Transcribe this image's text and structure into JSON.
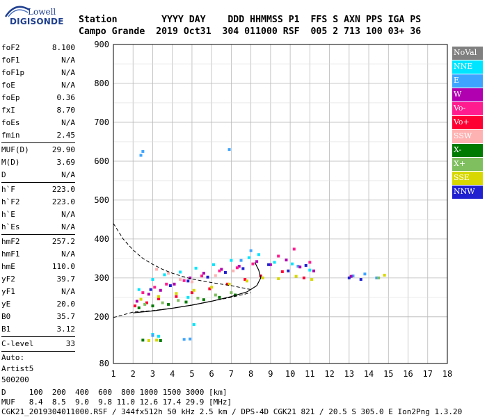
{
  "logo": {
    "top": "Lowell",
    "bottom": "DIGISONDE"
  },
  "header": {
    "line1": "Station        YYYY DAY    DDD HHMMSS P1  FFS S AXN PPS IGA PS",
    "line2": "Campo Grande  2019 Oct31  304 011000 RSF  005 2 713 100 03+ 36"
  },
  "params": [
    {
      "k": "foF2",
      "v": "8.100"
    },
    {
      "k": "foF1",
      "v": "N/A"
    },
    {
      "k": "foF1p",
      "v": "N/A"
    },
    {
      "k": "foE",
      "v": "N/A"
    },
    {
      "k": "foEp",
      "v": "0.36"
    },
    {
      "k": "fxI",
      "v": "8.70"
    },
    {
      "k": "foEs",
      "v": "N/A"
    },
    {
      "k": "fmin",
      "v": "2.45"
    },
    {
      "k": "MUF(D)",
      "v": "29.90"
    },
    {
      "k": "M(D)",
      "v": "3.69"
    },
    {
      "k": "D",
      "v": "N/A"
    },
    {
      "k": "h`F",
      "v": "223.0"
    },
    {
      "k": "h`F2",
      "v": "223.0"
    },
    {
      "k": "h`E",
      "v": "N/A"
    },
    {
      "k": "h`Es",
      "v": "N/A"
    },
    {
      "k": "hmF2",
      "v": "257.2"
    },
    {
      "k": "hmF1",
      "v": "N/A"
    },
    {
      "k": "hmE",
      "v": "110.0"
    },
    {
      "k": "yF2",
      "v": "39.7"
    },
    {
      "k": "yF1",
      "v": "N/A"
    },
    {
      "k": "yE",
      "v": "20.0"
    },
    {
      "k": "B0",
      "v": "35.7"
    },
    {
      "k": "B1",
      "v": "3.12"
    },
    {
      "k": "C-level",
      "v": "33"
    }
  ],
  "auto": {
    "line1": "Auto:",
    "line2": "Artist5",
    "line3": "500200"
  },
  "legend": [
    {
      "label": "NoVal",
      "color": "#808080"
    },
    {
      "label": "NNE",
      "color": "#00e5ff"
    },
    {
      "label": "E",
      "color": "#3da5ff"
    },
    {
      "label": "W",
      "color": "#b000b0"
    },
    {
      "label": "Vo-",
      "color": "#ff1c8e"
    },
    {
      "label": "Vo+",
      "color": "#ff0033"
    },
    {
      "label": "SSW",
      "color": "#ffb2b2"
    },
    {
      "label": "X-",
      "color": "#007a00"
    },
    {
      "label": "X+",
      "color": "#7fbf5f"
    },
    {
      "label": "SSE",
      "color": "#d8d800"
    },
    {
      "label": "NNW",
      "color": "#2020d0"
    }
  ],
  "footer": {
    "line1": "D     100  200  400  600  800 1000 1500 3000 [km]",
    "line2": "MUF   8.4  8.5  9.0  9.8 11.0 12.6 17.4 29.9 [MHz]",
    "line3": "CGK21_2019304011000.RSF / 344fx512h 50 kHz 2.5 km / DPS-4D CGK21 821 / 20.5 S 305.0 E Ion2Png 1.3.20"
  },
  "chart_data": {
    "type": "scatter",
    "xlim": [
      1,
      18
    ],
    "ylim": [
      80,
      900
    ],
    "xticks": [
      1,
      2,
      3,
      4,
      5,
      6,
      7,
      8,
      9,
      10,
      11,
      12,
      13,
      14,
      15,
      16,
      17,
      18
    ],
    "yticks": [
      80,
      200,
      300,
      400,
      500,
      600,
      700,
      800,
      900
    ],
    "grid": true,
    "legend_placement": "right",
    "series": [
      {
        "name": "NNE",
        "color": "#00e5ff",
        "points": [
          [
            3.0,
            296
          ],
          [
            3.6,
            308
          ],
          [
            4.4,
            315
          ],
          [
            5.2,
            325
          ],
          [
            6.1,
            334
          ],
          [
            7.0,
            345
          ],
          [
            7.9,
            352
          ],
          [
            8.4,
            360
          ],
          [
            9.2,
            340
          ],
          [
            10.1,
            336
          ],
          [
            11.0,
            320
          ],
          [
            2.3,
            270
          ],
          [
            4.8,
            250
          ],
          [
            5.1,
            180
          ],
          [
            3.3,
            150
          ],
          [
            3.0,
            155
          ]
        ]
      },
      {
        "name": "E",
        "color": "#3da5ff",
        "points": [
          [
            2.4,
            615
          ],
          [
            2.5,
            625
          ],
          [
            6.9,
            630
          ],
          [
            4.6,
            142
          ],
          [
            4.9,
            143
          ],
          [
            3.0,
            152
          ],
          [
            13.2,
            305
          ],
          [
            13.8,
            310
          ],
          [
            14.4,
            300
          ],
          [
            7.5,
            345
          ],
          [
            8.0,
            370
          ],
          [
            10.4,
            330
          ]
        ]
      },
      {
        "name": "W",
        "color": "#b000b0",
        "points": [
          [
            2.2,
            240
          ],
          [
            2.8,
            258
          ],
          [
            3.4,
            268
          ],
          [
            4.1,
            284
          ],
          [
            4.9,
            300
          ],
          [
            5.6,
            312
          ],
          [
            6.5,
            322
          ],
          [
            7.4,
            330
          ],
          [
            8.3,
            342
          ],
          [
            9.0,
            334
          ],
          [
            9.8,
            346
          ],
          [
            10.5,
            328
          ],
          [
            11.2,
            318
          ],
          [
            13.1,
            304
          ]
        ]
      },
      {
        "name": "Vo-",
        "color": "#ff1c8e",
        "points": [
          [
            2.5,
            262
          ],
          [
            3.1,
            276
          ],
          [
            3.7,
            284
          ],
          [
            4.6,
            293
          ],
          [
            5.5,
            305
          ],
          [
            6.4,
            318
          ],
          [
            7.3,
            326
          ],
          [
            8.1,
            336
          ],
          [
            9.4,
            356
          ],
          [
            10.2,
            374
          ],
          [
            11.0,
            340
          ]
        ]
      },
      {
        "name": "Vo+",
        "color": "#ff0033",
        "points": [
          [
            2.1,
            228
          ],
          [
            2.7,
            236
          ],
          [
            3.3,
            246
          ],
          [
            4.2,
            252
          ],
          [
            5.0,
            262
          ],
          [
            5.9,
            272
          ],
          [
            6.8,
            284
          ],
          [
            7.7,
            296
          ],
          [
            8.5,
            305
          ],
          [
            9.6,
            316
          ],
          [
            10.7,
            300
          ]
        ]
      },
      {
        "name": "SSW",
        "color": "#ffb2b2",
        "points": [
          [
            3.2,
            322
          ],
          [
            3.8,
            312
          ],
          [
            4.4,
            296
          ],
          [
            5.0,
            290
          ],
          [
            6.2,
            306
          ],
          [
            7.1,
            318
          ]
        ]
      },
      {
        "name": "X-",
        "color": "#007a00",
        "points": [
          [
            2.3,
            223
          ],
          [
            3.0,
            228
          ],
          [
            3.8,
            232
          ],
          [
            4.7,
            238
          ],
          [
            5.6,
            244
          ],
          [
            6.4,
            250
          ],
          [
            7.2,
            256
          ],
          [
            2.5,
            140
          ],
          [
            3.4,
            139
          ]
        ]
      },
      {
        "name": "X+",
        "color": "#7fbf5f",
        "points": [
          [
            2.6,
            232
          ],
          [
            3.5,
            236
          ],
          [
            4.3,
            242
          ],
          [
            5.3,
            248
          ],
          [
            6.2,
            256
          ],
          [
            7.0,
            262
          ],
          [
            14.5,
            300
          ]
        ]
      },
      {
        "name": "SSE",
        "color": "#d8d800",
        "points": [
          [
            2.4,
            245
          ],
          [
            3.3,
            252
          ],
          [
            4.2,
            260
          ],
          [
            5.1,
            268
          ],
          [
            6.0,
            276
          ],
          [
            6.9,
            284
          ],
          [
            7.8,
            292
          ],
          [
            8.6,
            300
          ],
          [
            9.4,
            298
          ],
          [
            10.3,
            304
          ],
          [
            11.1,
            296
          ],
          [
            2.8,
            139
          ],
          [
            3.2,
            140
          ],
          [
            14.8,
            307
          ]
        ]
      },
      {
        "name": "NNW",
        "color": "#2020d0",
        "points": [
          [
            2.9,
            270
          ],
          [
            3.9,
            280
          ],
          [
            4.8,
            292
          ],
          [
            5.8,
            302
          ],
          [
            6.7,
            314
          ],
          [
            7.6,
            324
          ],
          [
            8.9,
            334
          ],
          [
            9.9,
            318
          ],
          [
            10.8,
            332
          ],
          [
            13.0,
            300
          ],
          [
            13.6,
            296
          ]
        ]
      }
    ],
    "profile_curve": {
      "x": [
        2.0,
        3.0,
        4.0,
        5.0,
        6.0,
        7.0,
        7.8,
        8.3,
        8.5,
        8.4,
        8.2
      ],
      "y": [
        210,
        215,
        222,
        230,
        240,
        252,
        264,
        280,
        300,
        320,
        340
      ]
    },
    "virtual_height_curve": {
      "x": [
        1.0,
        1.5,
        2.0,
        2.5,
        3.0,
        3.5,
        4.0,
        4.5,
        5.0,
        6.0,
        7.0,
        8.0
      ],
      "y": [
        440,
        400,
        372,
        350,
        335,
        322,
        312,
        304,
        297,
        288,
        280,
        270
      ]
    },
    "lower_curve": {
      "x": [
        1.0,
        2.0,
        3.0,
        4.0,
        5.0,
        6.0,
        7.0,
        8.0
      ],
      "y": [
        198,
        212,
        216,
        222,
        230,
        240,
        250,
        262
      ]
    }
  }
}
